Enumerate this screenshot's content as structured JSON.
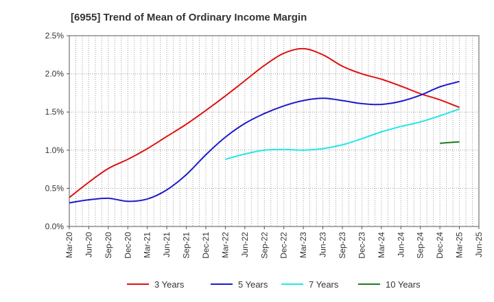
{
  "chart_data": {
    "type": "line",
    "title": "[6955]  Trend of Mean of Ordinary Income Margin",
    "xlabel": "",
    "ylabel": "",
    "x_tick_labels": [
      "Mar-20",
      "Jun-20",
      "Sep-20",
      "Dec-20",
      "Mar-21",
      "Jun-21",
      "Sep-21",
      "Dec-21",
      "Mar-22",
      "Jun-22",
      "Sep-22",
      "Dec-22",
      "Mar-23",
      "Jun-23",
      "Sep-23",
      "Dec-23",
      "Mar-24",
      "Jun-24",
      "Sep-24",
      "Dec-24",
      "Mar-25",
      "Jun-25"
    ],
    "y_tick_labels": [
      "0.0%",
      "0.5%",
      "1.0%",
      "1.5%",
      "2.0%",
      "2.5%"
    ],
    "y_ticks": [
      0,
      0.5,
      1.0,
      1.5,
      2.0,
      2.5
    ],
    "ylim": [
      0,
      2.5
    ],
    "grid": true,
    "legend_position": "bottom",
    "series": [
      {
        "name": "3 Years",
        "color": "#e01010",
        "x": [
          "Mar-20",
          "Jun-20",
          "Sep-20",
          "Dec-20",
          "Mar-21",
          "Jun-21",
          "Sep-21",
          "Dec-21",
          "Mar-22",
          "Jun-22",
          "Sep-22",
          "Dec-22",
          "Mar-23",
          "Jun-23",
          "Sep-23",
          "Dec-23",
          "Mar-24",
          "Jun-24",
          "Sep-24",
          "Dec-24",
          "Mar-25"
        ],
        "values": [
          0.38,
          0.58,
          0.76,
          0.88,
          1.02,
          1.18,
          1.34,
          1.52,
          1.71,
          1.91,
          2.11,
          2.27,
          2.33,
          2.25,
          2.1,
          2.0,
          1.93,
          1.84,
          1.74,
          1.66,
          1.56
        ]
      },
      {
        "name": "5 Years",
        "color": "#1a1acc",
        "x": [
          "Mar-20",
          "Jun-20",
          "Sep-20",
          "Dec-20",
          "Mar-21",
          "Jun-21",
          "Sep-21",
          "Dec-21",
          "Mar-22",
          "Jun-22",
          "Sep-22",
          "Dec-22",
          "Mar-23",
          "Jun-23",
          "Sep-23",
          "Dec-23",
          "Mar-24",
          "Jun-24",
          "Sep-24",
          "Dec-24",
          "Mar-25"
        ],
        "values": [
          0.31,
          0.35,
          0.37,
          0.33,
          0.36,
          0.48,
          0.68,
          0.94,
          1.17,
          1.35,
          1.48,
          1.58,
          1.65,
          1.68,
          1.65,
          1.61,
          1.6,
          1.64,
          1.72,
          1.83,
          1.9
        ]
      },
      {
        "name": "7 Years",
        "color": "#22e6e6",
        "x": [
          "Mar-22",
          "Jun-22",
          "Sep-22",
          "Dec-22",
          "Mar-23",
          "Jun-23",
          "Sep-23",
          "Dec-23",
          "Mar-24",
          "Jun-24",
          "Sep-24",
          "Dec-24",
          "Mar-25"
        ],
        "values": [
          0.88,
          0.95,
          1.0,
          1.01,
          1.0,
          1.02,
          1.07,
          1.15,
          1.24,
          1.31,
          1.37,
          1.45,
          1.54
        ]
      },
      {
        "name": "10 Years",
        "color": "#1a7a1a",
        "x": [
          "Dec-24",
          "Mar-25"
        ],
        "values": [
          1.09,
          1.11
        ]
      }
    ]
  }
}
